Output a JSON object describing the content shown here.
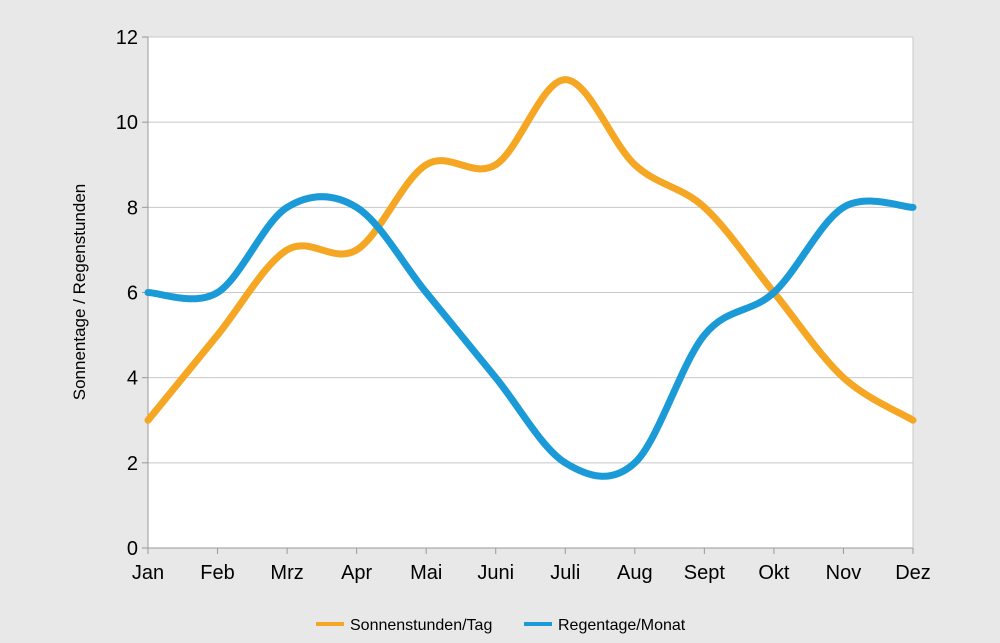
{
  "chart_data": {
    "type": "line",
    "title": "",
    "xlabel": "",
    "ylabel": "Sonnentage / Regenstunden",
    "categories": [
      "Jan",
      "Feb",
      "Mrz",
      "Apr",
      "Mai",
      "Juni",
      "Juli",
      "Aug",
      "Sept",
      "Okt",
      "Nov",
      "Dez"
    ],
    "ylim": [
      0,
      12
    ],
    "yticks": [
      0,
      2,
      4,
      6,
      8,
      10,
      12
    ],
    "grid": true,
    "legend_position": "bottom",
    "series": [
      {
        "name": "Sonnenstunden/Tag",
        "color": "#f5a623",
        "values": [
          3,
          5,
          7,
          7,
          9,
          9,
          11,
          9,
          8,
          6,
          4,
          3
        ]
      },
      {
        "name": "Regentage/Monat",
        "color": "#1a9ad6",
        "values": [
          6,
          6,
          8,
          8,
          6,
          4,
          2,
          2,
          5,
          6,
          8,
          8
        ]
      }
    ]
  }
}
